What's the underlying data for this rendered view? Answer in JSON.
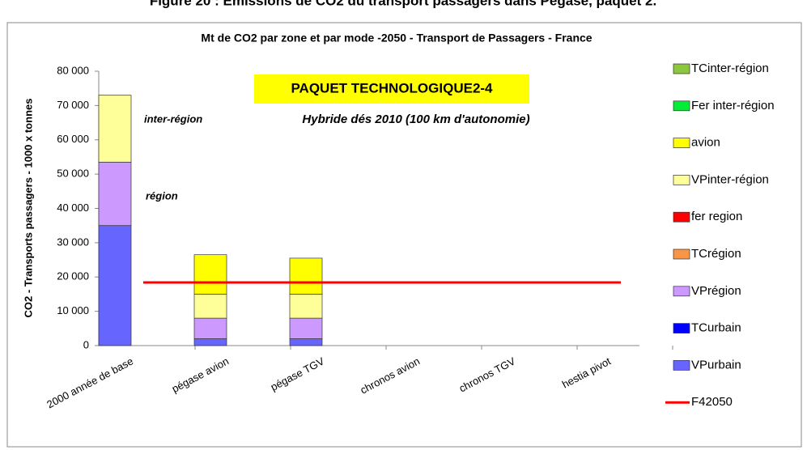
{
  "header": {
    "title": "Figure 20 : Emissions de CO2 du transport passagers dans Pégase, paquet 2."
  },
  "chart_data": {
    "type": "stacked_bar",
    "title": "Mt de CO2 par zone et par mode -2050 - Transport de Passagers - France",
    "y_label": "CO2 - Transports passagers - 1000  x tonnes",
    "annotations": [
      "PAQUET TECHNOLOGIQUE2-4",
      "Hybride dés 2010 (100 km d'autonomie)",
      "inter-région",
      "région"
    ],
    "categories": [
      "2000 année de base",
      "pégase avion",
      "pégase TGV",
      "chronos avion",
      "chronos TGV",
      "hestia pivot"
    ],
    "series": [
      {
        "name": "VPurbain",
        "color": "#6666ff",
        "values": [
          35000,
          2000,
          2000,
          0,
          0,
          0
        ]
      },
      {
        "name": "TCurbain",
        "color": "#0000ff",
        "values": [
          0,
          0,
          0,
          0,
          0,
          0
        ]
      },
      {
        "name": "VPrégion",
        "color": "#cc99ff",
        "values": [
          18500,
          6000,
          6000,
          0,
          0,
          0
        ]
      },
      {
        "name": "TCrégion",
        "color": "#f79646",
        "values": [
          0,
          0,
          0,
          0,
          0,
          0
        ]
      },
      {
        "name": "fer region",
        "color": "#ff0000",
        "values": [
          0,
          0,
          0,
          0,
          0,
          0
        ]
      },
      {
        "name": "VPinter-région",
        "color": "#ffff99",
        "values": [
          19500,
          7000,
          7000,
          0,
          0,
          0
        ]
      },
      {
        "name": "avion",
        "color": "#ffff00",
        "values": [
          0,
          11500,
          10500,
          0,
          0,
          0
        ]
      },
      {
        "name": "Fer inter-région",
        "color": "#00ee33",
        "values": [
          0,
          0,
          0,
          0,
          0,
          0
        ]
      },
      {
        "name": "TCinter-région",
        "color": "#8dc63f",
        "values": [
          0,
          0,
          0,
          0,
          0,
          0
        ]
      },
      {
        "name": "F42050",
        "color": "#ff0000",
        "type": "line",
        "values": [
          18400,
          18400,
          18400,
          18400,
          18400,
          18400
        ]
      }
    ],
    "ylim": [
      0,
      80000
    ],
    "yticks": [
      0,
      {
        "value": 10000,
        "label": "10 000"
      },
      {
        "value": 20000,
        "label": "20 000"
      },
      {
        "value": 30000,
        "label": "30 000"
      },
      {
        "value": 40000,
        "label": "40 000"
      },
      {
        "value": 50000,
        "label": "50 000"
      },
      {
        "value": 60000,
        "label": "60 000"
      },
      {
        "value": 70000,
        "label": "70 000"
      },
      {
        "value": 80000,
        "label": "80 000"
      }
    ],
    "legend": "right"
  }
}
